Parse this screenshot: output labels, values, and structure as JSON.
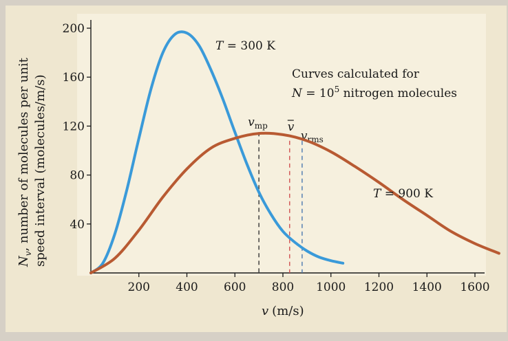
{
  "chart_data": {
    "type": "line",
    "xlabel_var": "v",
    "xlabel_unit": "(m/s)",
    "ylabel_line1_var": "N",
    "ylabel_line1_sub": "v",
    "ylabel_line1_rest": ", number of molecules per unit",
    "ylabel_line2": "speed interval (molecules/m/s)",
    "x_ticks": [
      200,
      400,
      600,
      800,
      1000,
      1200,
      1400,
      1600
    ],
    "y_ticks": [
      40,
      80,
      120,
      160,
      200
    ],
    "xlim": [
      0,
      1700
    ],
    "ylim": [
      0,
      210
    ],
    "series": [
      {
        "name": "T = 300 K",
        "color": "#3a9ad9",
        "x": [
          0,
          50,
          100,
          150,
          200,
          250,
          300,
          350,
          400,
          450,
          500,
          550,
          600,
          650,
          700,
          750,
          800,
          850,
          900,
          950,
          1000,
          1050
        ],
        "y": [
          0,
          8,
          32,
          68,
          110,
          150,
          180,
          195,
          196,
          186,
          166,
          142,
          115,
          89,
          66,
          48,
          34,
          25,
          18,
          13,
          10,
          8
        ]
      },
      {
        "name": "T = 900 K",
        "color": "#b85a32",
        "x": [
          0,
          100,
          200,
          300,
          400,
          500,
          600,
          700,
          800,
          900,
          1000,
          1100,
          1200,
          1300,
          1400,
          1500,
          1600,
          1700
        ],
        "y": [
          0,
          12,
          35,
          62,
          85,
          102,
          110,
          114,
          113,
          108,
          99,
          87,
          74,
          60,
          47,
          34,
          24,
          16
        ]
      }
    ],
    "markers": [
      {
        "label_main": "v",
        "label_sub": "mp",
        "x": 700,
        "y_top": 115,
        "color": "#333333",
        "dash": "6,5"
      },
      {
        "label_main": "v",
        "label_sub": "",
        "bar": true,
        "x": 828,
        "y_top": 108,
        "color": "#d05050",
        "dash": "6,5"
      },
      {
        "label_main": "v",
        "label_sub": "rms",
        "x": 880,
        "y_top": 108,
        "color": "#4a78b0",
        "dash": "6,5"
      }
    ],
    "annotations": {
      "t300_var": "T",
      "t300_rest": " = 300 K",
      "t900_var": "T",
      "t900_rest": " = 900 K",
      "note_line1": "Curves calculated for",
      "note_line2_var": "N",
      "note_line2_eq": " = 10",
      "note_line2_exp": "5",
      "note_line2_rest": " nitrogen molecules"
    }
  }
}
